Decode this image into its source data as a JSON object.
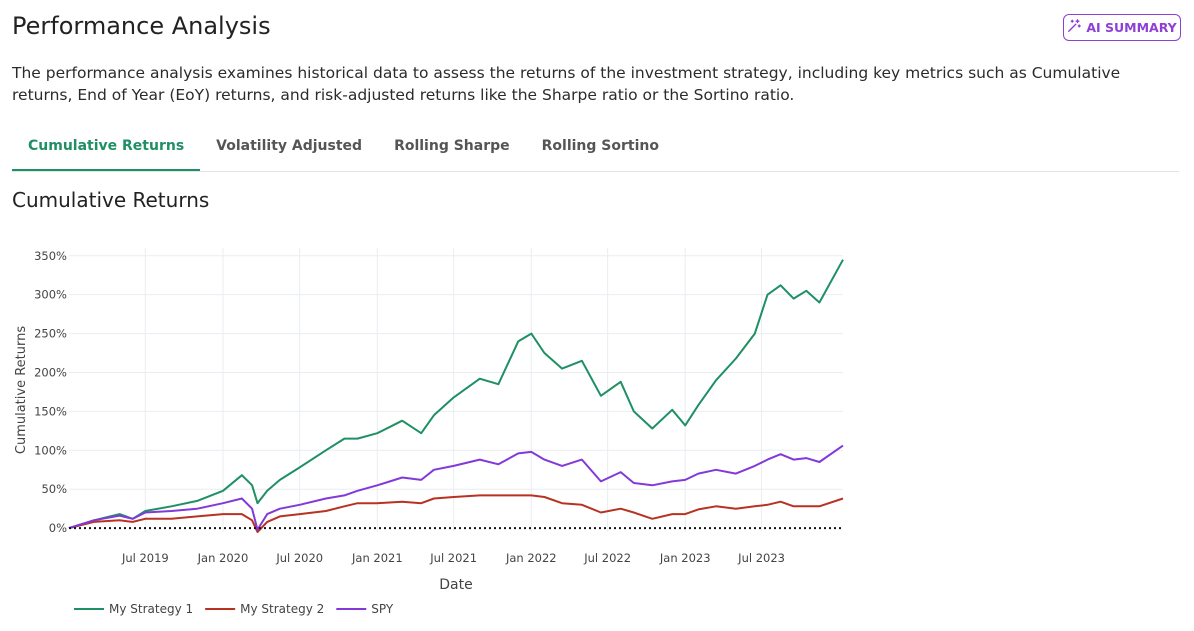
{
  "header": {
    "title": "Performance Analysis",
    "ai_summary_label": "AI SUMMARY"
  },
  "description": "The performance analysis examines historical data to assess the returns of the investment strategy, including key metrics such as Cumulative returns, End of Year (EoY) returns, and risk-adjusted returns like the Sharpe ratio or the Sortino ratio.",
  "tabs": [
    {
      "label": "Cumulative Returns",
      "active": true
    },
    {
      "label": "Volatility Adjusted",
      "active": false
    },
    {
      "label": "Rolling Sharpe",
      "active": false
    },
    {
      "label": "Rolling Sortino",
      "active": false
    }
  ],
  "section_title": "Cumulative Returns",
  "colors": {
    "accent": "#1f8f64",
    "ai_purple": "#8e3fd6",
    "series": [
      "#1f8f64",
      "#b83222",
      "#8339d8"
    ]
  },
  "chart_data": {
    "type": "line",
    "title": "",
    "xlabel": "Date",
    "ylabel": "Cumulative Returns",
    "x_range": [
      "2019-01-01",
      "2024-01-10"
    ],
    "ylim": [
      -5,
      360
    ],
    "y_ticks": [
      0,
      50,
      100,
      150,
      200,
      250,
      300,
      350
    ],
    "y_tick_labels": [
      "0%",
      "50%",
      "100%",
      "150%",
      "200%",
      "250%",
      "300%",
      "350%"
    ],
    "x_ticks": [
      "2019-07-01",
      "2020-01-01",
      "2020-07-01",
      "2021-01-01",
      "2021-07-01",
      "2022-01-01",
      "2022-07-01",
      "2023-01-01",
      "2023-07-01"
    ],
    "x_tick_labels": [
      "Jul 2019",
      "Jan 2020",
      "Jul 2020",
      "Jan 2021",
      "Jul 2021",
      "Jan 2022",
      "Jul 2022",
      "Jan 2023",
      "Jul 2023"
    ],
    "grid": true,
    "baseline": 0,
    "legend_position": "bottom-left",
    "x": [
      "2019-01-01",
      "2019-03-01",
      "2019-05-01",
      "2019-06-01",
      "2019-07-01",
      "2019-09-01",
      "2019-11-01",
      "2020-01-01",
      "2020-02-15",
      "2020-03-10",
      "2020-03-23",
      "2020-04-15",
      "2020-05-15",
      "2020-07-01",
      "2020-09-01",
      "2020-10-15",
      "2020-11-15",
      "2021-01-01",
      "2021-03-01",
      "2021-04-15",
      "2021-05-15",
      "2021-07-01",
      "2021-09-01",
      "2021-10-15",
      "2021-12-01",
      "2022-01-01",
      "2022-02-01",
      "2022-03-15",
      "2022-05-01",
      "2022-06-15",
      "2022-08-01",
      "2022-09-01",
      "2022-10-15",
      "2022-12-01",
      "2023-01-01",
      "2023-02-01",
      "2023-03-15",
      "2023-05-01",
      "2023-06-15",
      "2023-07-15",
      "2023-08-15",
      "2023-09-15",
      "2023-10-15",
      "2023-11-15",
      "2024-01-10"
    ],
    "series": [
      {
        "name": "My Strategy 1",
        "values": [
          0,
          10,
          18,
          12,
          22,
          28,
          35,
          48,
          68,
          55,
          32,
          48,
          62,
          78,
          100,
          115,
          115,
          122,
          138,
          122,
          145,
          168,
          192,
          185,
          240,
          250,
          225,
          205,
          215,
          170,
          188,
          150,
          128,
          152,
          132,
          158,
          190,
          218,
          250,
          300,
          312,
          295,
          305,
          290,
          345
        ]
      },
      {
        "name": "My Strategy 2",
        "values": [
          0,
          8,
          10,
          8,
          12,
          12,
          15,
          18,
          18,
          10,
          -5,
          8,
          15,
          18,
          22,
          28,
          32,
          32,
          34,
          32,
          38,
          40,
          42,
          42,
          42,
          42,
          40,
          32,
          30,
          20,
          25,
          20,
          12,
          18,
          18,
          24,
          28,
          25,
          28,
          30,
          34,
          28,
          28,
          28,
          38
        ]
      },
      {
        "name": "SPY",
        "values": [
          0,
          10,
          16,
          12,
          20,
          22,
          25,
          32,
          38,
          25,
          -2,
          18,
          25,
          30,
          38,
          42,
          48,
          55,
          65,
          62,
          75,
          80,
          88,
          82,
          96,
          98,
          88,
          80,
          88,
          60,
          72,
          58,
          55,
          60,
          62,
          70,
          75,
          70,
          80,
          88,
          95,
          88,
          90,
          85,
          106
        ]
      }
    ]
  }
}
